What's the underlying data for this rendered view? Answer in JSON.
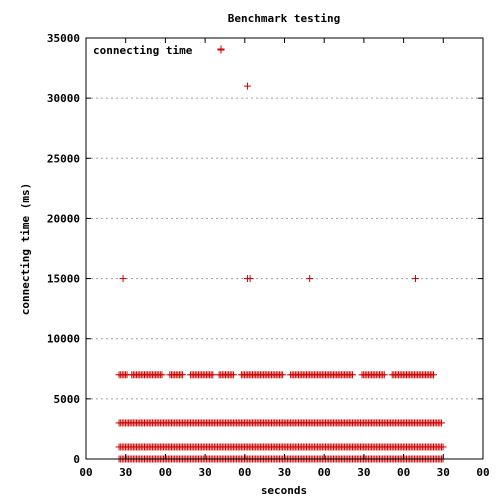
{
  "chart_data": {
    "type": "scatter",
    "title": "Benchmark testing",
    "xlabel": "seconds",
    "ylabel": "connecting time (ms)",
    "ylim": [
      0,
      35000
    ],
    "yticks": [
      0,
      5000,
      10000,
      15000,
      20000,
      25000,
      30000,
      35000
    ],
    "xticks": [
      "00",
      "30",
      "00",
      "30",
      "00",
      "30",
      "00",
      "30",
      "00",
      "30",
      "00"
    ],
    "xlim_seconds": [
      0,
      300
    ],
    "grid": "horizontal dotted",
    "legend": "top-left",
    "colors": {
      "series": "#cc0000",
      "grid": "#a0a0a0"
    },
    "series": [
      {
        "name": "connecting time",
        "points": [
          {
            "x": 102,
            "y": 34000
          },
          {
            "x": 122,
            "y": 31000
          },
          {
            "x": 28,
            "y": 15000
          },
          {
            "x": 122,
            "y": 15000
          },
          {
            "x": 124,
            "y": 15000
          },
          {
            "x": 169,
            "y": 15000
          },
          {
            "x": 249,
            "y": 15000
          }
        ],
        "bands": [
          {
            "y": 7000,
            "x_start": 25,
            "x_end": 263,
            "gaps": [
              [
                31,
                34
              ],
              [
                58,
                63
              ],
              [
                74,
                78
              ],
              [
                96,
                100
              ],
              [
                112,
                117
              ],
              [
                149,
                154
              ],
              [
                202,
                208
              ],
              [
                226,
                231
              ]
            ]
          },
          {
            "y": 3000,
            "x_start": 25,
            "x_end": 269,
            "gaps": []
          },
          {
            "y": 1000,
            "x_start": 25,
            "x_end": 270,
            "gaps": []
          },
          {
            "y": 0,
            "x_start": 25,
            "x_end": 270,
            "gaps": []
          }
        ]
      }
    ]
  }
}
